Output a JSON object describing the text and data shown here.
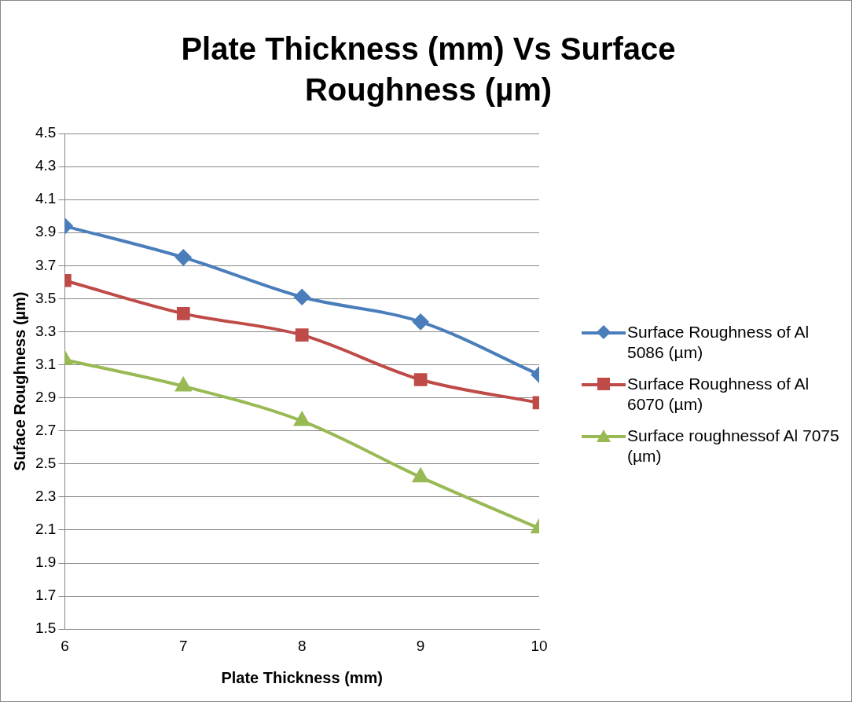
{
  "chart_data": {
    "type": "line",
    "title": "Plate Thickness (mm) Vs Surface Roughness (µm)",
    "xlabel": "Plate Thickness (mm)",
    "ylabel": "Suface Roughness (µm)",
    "x": [
      6,
      7,
      8,
      9,
      10
    ],
    "xlim": [
      6,
      10
    ],
    "xticks": [
      6,
      7,
      8,
      9,
      10
    ],
    "ylim": [
      1.5,
      4.5
    ],
    "yticks": [
      1.5,
      1.7,
      1.9,
      2.1,
      2.3,
      2.5,
      2.7,
      2.9,
      3.1,
      3.3,
      3.5,
      3.7,
      3.9,
      4.1,
      4.3,
      4.5
    ],
    "grid": "y",
    "legend": "right",
    "series": [
      {
        "name": "Surface Roughness of Al 5086 (µm)",
        "color": "#4a7ebb",
        "marker": "diamond",
        "values": [
          3.94,
          3.75,
          3.51,
          3.36,
          3.04
        ]
      },
      {
        "name": "Surface Roughness of Al 6070 (µm)",
        "color": "#be4b48",
        "marker": "square",
        "values": [
          3.61,
          3.41,
          3.28,
          3.01,
          2.87
        ]
      },
      {
        "name": "Surface roughnessof Al 7075 (µm)",
        "color": "#98b954",
        "marker": "triangle",
        "values": [
          3.13,
          2.97,
          2.76,
          2.42,
          2.11
        ]
      }
    ]
  }
}
